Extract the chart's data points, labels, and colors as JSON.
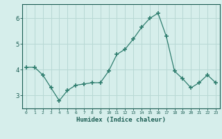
{
  "x": [
    0,
    1,
    2,
    3,
    4,
    5,
    6,
    7,
    8,
    9,
    10,
    11,
    12,
    13,
    14,
    15,
    16,
    17,
    18,
    19,
    20,
    21,
    22,
    23
  ],
  "y": [
    4.1,
    4.1,
    3.8,
    3.3,
    2.8,
    3.2,
    3.4,
    3.45,
    3.5,
    3.5,
    3.95,
    4.6,
    4.8,
    5.2,
    5.65,
    6.0,
    6.2,
    5.3,
    3.95,
    3.65,
    3.3,
    3.5,
    3.8,
    3.5
  ],
  "line_color": "#2e7d6e",
  "marker": "+",
  "marker_size": 5,
  "bg_color": "#d6eeeb",
  "grid_color": "#b8d8d4",
  "xlabel": "Humidex (Indice chaleur)",
  "xlabel_color": "#1a5c52",
  "tick_color": "#1a5c52",
  "ylabel_ticks": [
    3,
    4,
    5,
    6
  ],
  "xlim": [
    -0.5,
    23.5
  ],
  "ylim": [
    2.5,
    6.55
  ],
  "title": ""
}
